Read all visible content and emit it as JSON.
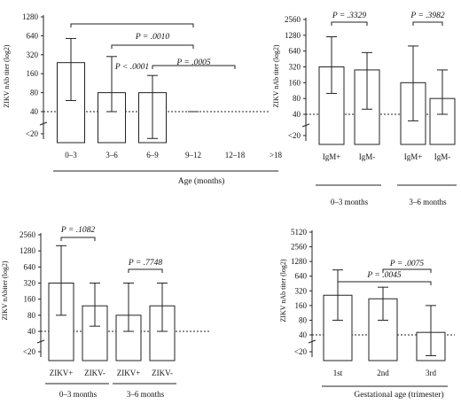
{
  "chart_data": [
    {
      "type": "bar",
      "ylabel": "ZIKV nAb titer (log2)",
      "yticks": [
        "1280",
        "640",
        "320",
        "160",
        "80",
        "40",
        "<20"
      ],
      "categories": [
        "0–3",
        "3–6",
        "6–9",
        "9–12",
        "12–18",
        ">18"
      ],
      "values": [
        240,
        80,
        80,
        null,
        null,
        null
      ],
      "error_high": [
        580,
        300,
        150,
        40,
        null,
        null
      ],
      "error_low": [
        60,
        40,
        15,
        null,
        null,
        null
      ],
      "reference_line": 40,
      "xlabel": "Age (months)",
      "brackets": [
        {
          "from": "0–3",
          "to": "9–12",
          "label": "P < .0001"
        },
        {
          "from": "3–6",
          "to": "9–12",
          "label": "P = .0010"
        },
        {
          "from": "6–9",
          "to": "12–18",
          "label": "P = .0005"
        }
      ]
    },
    {
      "type": "bar",
      "ylabel": "ZIKV nAb titer (log2)",
      "yticks": [
        "2560",
        "1280",
        "640",
        "320",
        "160",
        "80",
        "40",
        "<20"
      ],
      "categories": [
        "IgM+",
        "IgM-",
        "IgM+",
        "IgM-"
      ],
      "groups": [
        "0–3 months",
        "3–6 months"
      ],
      "values": [
        320,
        280,
        160,
        80
      ],
      "error_high": [
        1200,
        600,
        800,
        280
      ],
      "error_low": [
        100,
        50,
        30,
        40
      ],
      "reference_line": 40,
      "brackets": [
        {
          "from": 0,
          "to": 1,
          "label": "P = .3329"
        },
        {
          "from": 2,
          "to": 3,
          "label": "P = .3982"
        }
      ]
    },
    {
      "type": "bar",
      "ylabel": "ZIKV nAbiter (log2)",
      "yticks": [
        "2560",
        "1280",
        "640",
        "320",
        "160",
        "80",
        "40",
        "<20"
      ],
      "categories": [
        "ZIKV+",
        "ZIKV-",
        "ZIKV+",
        "ZIKV-"
      ],
      "groups": [
        "0–3 months",
        "3–6 months"
      ],
      "values": [
        320,
        120,
        80,
        120
      ],
      "error_high": [
        1600,
        320,
        320,
        320
      ],
      "error_low": [
        80,
        50,
        40,
        40
      ],
      "reference_line": 40,
      "brackets": [
        {
          "from": 0,
          "to": 1,
          "label": "P = .1082"
        },
        {
          "from": 2,
          "to": 3,
          "label": "P = .7748"
        }
      ]
    },
    {
      "type": "bar",
      "ylabel": "ZIKV nAb titer (log2)",
      "yticks": [
        "5120",
        "2560",
        "1280",
        "640",
        "320",
        "160",
        "80",
        "40",
        "<20"
      ],
      "categories": [
        "1st",
        "2nd",
        "3rd"
      ],
      "values": [
        260,
        220,
        45
      ],
      "error_high": [
        860,
        380,
        160
      ],
      "error_low": [
        80,
        80,
        15
      ],
      "reference_line": 40,
      "xlabel": "Gestational age (trimester)",
      "brackets": [
        {
          "from": "1st",
          "to": "3rd",
          "label": "P = .0045"
        },
        {
          "from": "2nd",
          "to": "3rd",
          "label": "P = .0075"
        }
      ]
    }
  ]
}
